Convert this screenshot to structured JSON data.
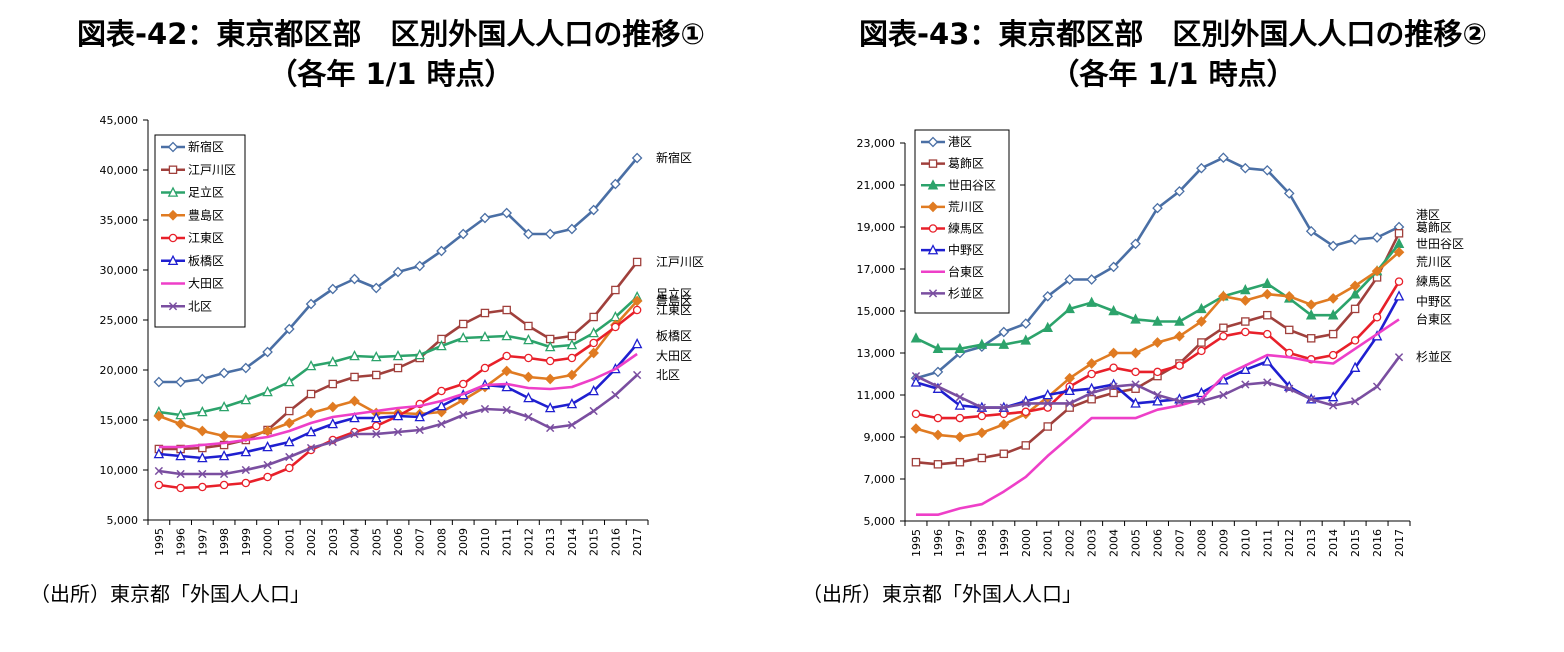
{
  "chart_data": [
    {
      "type": "line",
      "title_line1": "図表-42：東京都区部　区別外国人人口の推移①",
      "title_line2": "（各年 1/1 時点）",
      "source": "（出所）東京都「外国人人口」",
      "categories": [
        "1995",
        "1996",
        "1997",
        "1998",
        "1999",
        "2000",
        "2001",
        "2002",
        "2003",
        "2004",
        "2005",
        "2006",
        "2007",
        "2008",
        "2009",
        "2010",
        "2011",
        "2012",
        "2013",
        "2014",
        "2015",
        "2016",
        "2017"
      ],
      "ylim": [
        5000,
        45000
      ],
      "yticks": [
        "5,000",
        "10,000",
        "15,000",
        "20,000",
        "25,000",
        "30,000",
        "35,000",
        "40,000",
        "45,000"
      ],
      "series": [
        {
          "name": "新宿区",
          "color": "#4a6fa5",
          "marker": "diamond-open",
          "end_label": "新宿区",
          "values": [
            18800,
            18800,
            19100,
            19700,
            20200,
            21800,
            24100,
            26600,
            28100,
            29100,
            28200,
            29800,
            30400,
            31900,
            33600,
            35200,
            35700,
            33600,
            33600,
            34100,
            36000,
            38600,
            41200
          ]
        },
        {
          "name": "江戸川区",
          "color": "#a0403c",
          "marker": "square-open",
          "end_label": "江戸川区",
          "values": [
            12100,
            12100,
            12200,
            12500,
            13000,
            14000,
            15900,
            17600,
            18600,
            19300,
            19500,
            20200,
            21200,
            23100,
            24600,
            25700,
            26000,
            24400,
            23100,
            23400,
            25300,
            28000,
            30800
          ]
        },
        {
          "name": "足立区",
          "color": "#2ca36b",
          "marker": "triangle-open",
          "end_label": "足立区",
          "values": [
            15800,
            15500,
            15800,
            16300,
            17000,
            17800,
            18800,
            20400,
            20800,
            21400,
            21300,
            21400,
            21500,
            22400,
            23200,
            23300,
            23400,
            23000,
            22300,
            22500,
            23700,
            25300,
            27300
          ]
        },
        {
          "name": "豊島区",
          "color": "#e07b22",
          "marker": "diamond-filled",
          "end_label": "豊島区",
          "values": [
            15400,
            14600,
            13900,
            13400,
            13300,
            13900,
            14700,
            15700,
            16300,
            16900,
            15700,
            15700,
            15600,
            15800,
            17000,
            18300,
            19900,
            19300,
            19100,
            19500,
            21700,
            24500,
            26900
          ]
        },
        {
          "name": "江東区",
          "color": "#e8202a",
          "marker": "circle-open",
          "end_label": "江東区",
          "values": [
            8500,
            8200,
            8300,
            8500,
            8700,
            9300,
            10200,
            12000,
            13000,
            13800,
            14400,
            15400,
            16600,
            17900,
            18600,
            20200,
            21400,
            21200,
            20900,
            21200,
            22700,
            24300,
            26000
          ]
        },
        {
          "name": "板橋区",
          "color": "#1f1fd0",
          "marker": "triangle-open",
          "end_label": "板橋区",
          "values": [
            11600,
            11400,
            11200,
            11400,
            11800,
            12300,
            12800,
            13800,
            14600,
            15200,
            15200,
            15400,
            15300,
            16400,
            17500,
            18500,
            18300,
            17200,
            16200,
            16600,
            17900,
            20100,
            22600
          ]
        },
        {
          "name": "大田区",
          "color": "#ee3fc8",
          "marker": "none",
          "end_label": "大田区",
          "values": [
            12300,
            12300,
            12500,
            12700,
            13000,
            13300,
            13900,
            14700,
            15300,
            15600,
            15900,
            16200,
            16400,
            16900,
            17600,
            18500,
            18600,
            18200,
            18100,
            18300,
            19100,
            20100,
            21600
          ]
        },
        {
          "name": "北区",
          "color": "#7a4ea0",
          "marker": "x",
          "end_label": "北区",
          "values": [
            9900,
            9600,
            9600,
            9600,
            10000,
            10500,
            11300,
            12200,
            12800,
            13600,
            13600,
            13800,
            14000,
            14600,
            15500,
            16100,
            16000,
            15300,
            14200,
            14500,
            15900,
            17500,
            19500
          ]
        }
      ]
    },
    {
      "type": "line",
      "title_line1": "図表-43：東京都区部　区別外国人人口の推移②",
      "title_line2": "（各年 1/1 時点）",
      "source": "（出所）東京都「外国人人口」",
      "categories": [
        "1995",
        "1996",
        "1997",
        "1998",
        "1999",
        "2000",
        "2001",
        "2002",
        "2003",
        "2004",
        "2005",
        "2006",
        "2007",
        "2008",
        "2009",
        "2010",
        "2011",
        "2012",
        "2013",
        "2014",
        "2015",
        "2016",
        "2017"
      ],
      "ylim": [
        5000,
        23000
      ],
      "yticks": [
        "5,000",
        "7,000",
        "9,000",
        "11,000",
        "13,000",
        "15,000",
        "17,000",
        "19,000",
        "21,000",
        "23,000"
      ],
      "series": [
        {
          "name": "港区",
          "color": "#4a6fa5",
          "marker": "diamond-open",
          "end_label": "港区",
          "values": [
            11800,
            12100,
            13000,
            13300,
            14000,
            14400,
            15700,
            16500,
            16500,
            17100,
            18200,
            19900,
            20700,
            21800,
            22300,
            21800,
            21700,
            20600,
            18800,
            18100,
            18400,
            18500,
            19000
          ]
        },
        {
          "name": "葛飾区",
          "color": "#a0403c",
          "marker": "square-open",
          "end_label": "葛飾区",
          "values": [
            7800,
            7700,
            7800,
            8000,
            8200,
            8600,
            9500,
            10400,
            10800,
            11100,
            11300,
            11900,
            12500,
            13500,
            14200,
            14500,
            14800,
            14100,
            13700,
            13900,
            15100,
            16600,
            18700
          ]
        },
        {
          "name": "世田谷区",
          "color": "#2ca36b",
          "marker": "triangle-filled",
          "end_label": "世田谷区",
          "values": [
            13700,
            13200,
            13200,
            13400,
            13400,
            13600,
            14200,
            15100,
            15400,
            15000,
            14600,
            14500,
            14500,
            15100,
            15700,
            16000,
            16300,
            15600,
            14800,
            14800,
            15800,
            16900,
            18200
          ]
        },
        {
          "name": "荒川区",
          "color": "#e07b22",
          "marker": "diamond-filled",
          "end_label": "荒川区",
          "values": [
            9400,
            9100,
            9000,
            9200,
            9600,
            10100,
            10900,
            11800,
            12500,
            13000,
            13000,
            13500,
            13800,
            14500,
            15700,
            15500,
            15800,
            15700,
            15300,
            15600,
            16200,
            16900,
            17800
          ]
        },
        {
          "name": "練馬区",
          "color": "#e8202a",
          "marker": "circle-open",
          "end_label": "練馬区",
          "values": [
            10100,
            9900,
            9900,
            10000,
            10100,
            10200,
            10400,
            11400,
            12000,
            12300,
            12100,
            12100,
            12400,
            13100,
            13800,
            14000,
            13900,
            13000,
            12700,
            12900,
            13600,
            14700,
            16400
          ]
        },
        {
          "name": "中野区",
          "color": "#1f1fd0",
          "marker": "triangle-open",
          "end_label": "中野区",
          "values": [
            11600,
            11300,
            10500,
            10400,
            10400,
            10700,
            11000,
            11200,
            11300,
            11500,
            10600,
            10700,
            10800,
            11100,
            11700,
            12200,
            12600,
            11400,
            10800,
            10900,
            12300,
            13800,
            15700
          ]
        },
        {
          "name": "台東区",
          "color": "#ee3fc8",
          "marker": "none",
          "end_label": "台東区",
          "values": [
            5300,
            5300,
            5600,
            5800,
            6400,
            7100,
            8100,
            9000,
            9900,
            9900,
            9900,
            10300,
            10500,
            10800,
            11900,
            12400,
            12900,
            12800,
            12600,
            12500,
            13200,
            13900,
            14600
          ]
        },
        {
          "name": "杉並区",
          "color": "#7a4ea0",
          "marker": "x",
          "end_label": "杉並区",
          "values": [
            11900,
            11400,
            10900,
            10400,
            10400,
            10600,
            10600,
            10600,
            11100,
            11400,
            11500,
            11000,
            10700,
            10700,
            11000,
            11500,
            11600,
            11300,
            10800,
            10500,
            10700,
            11400,
            12800
          ]
        }
      ]
    }
  ]
}
